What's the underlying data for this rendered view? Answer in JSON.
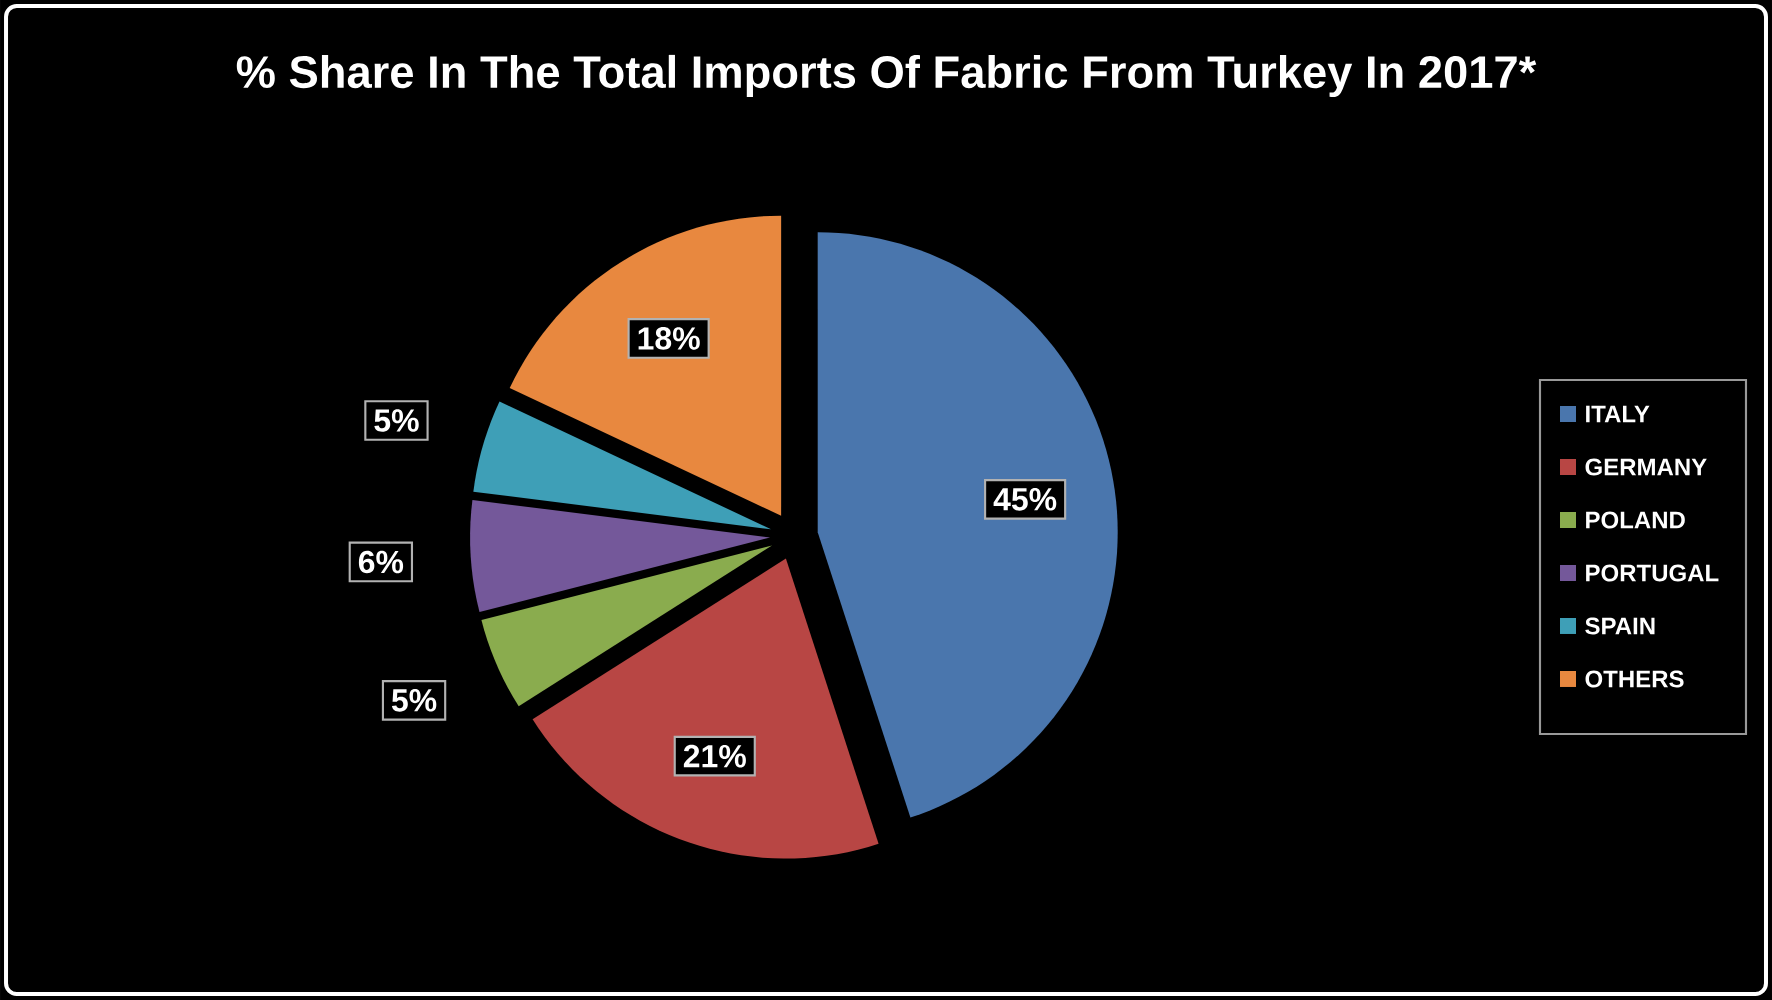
{
  "chart_data": {
    "type": "pie",
    "title": "% Share In The Total Imports Of Fabric From Turkey In 2017*",
    "categories": [
      "ITALY",
      "GERMANY",
      "POLAND",
      "PORTUGAL",
      "SPAIN",
      "OTHERS"
    ],
    "values": [
      45,
      21,
      5,
      6,
      5,
      18
    ],
    "value_labels": [
      "45%",
      "21%",
      "5%",
      "6%",
      "5%",
      "18%"
    ],
    "colors": [
      "#4a76ad",
      "#b84644",
      "#8aac4e",
      "#74589a",
      "#3e9fb7",
      "#e8883f"
    ],
    "legend": "right"
  }
}
